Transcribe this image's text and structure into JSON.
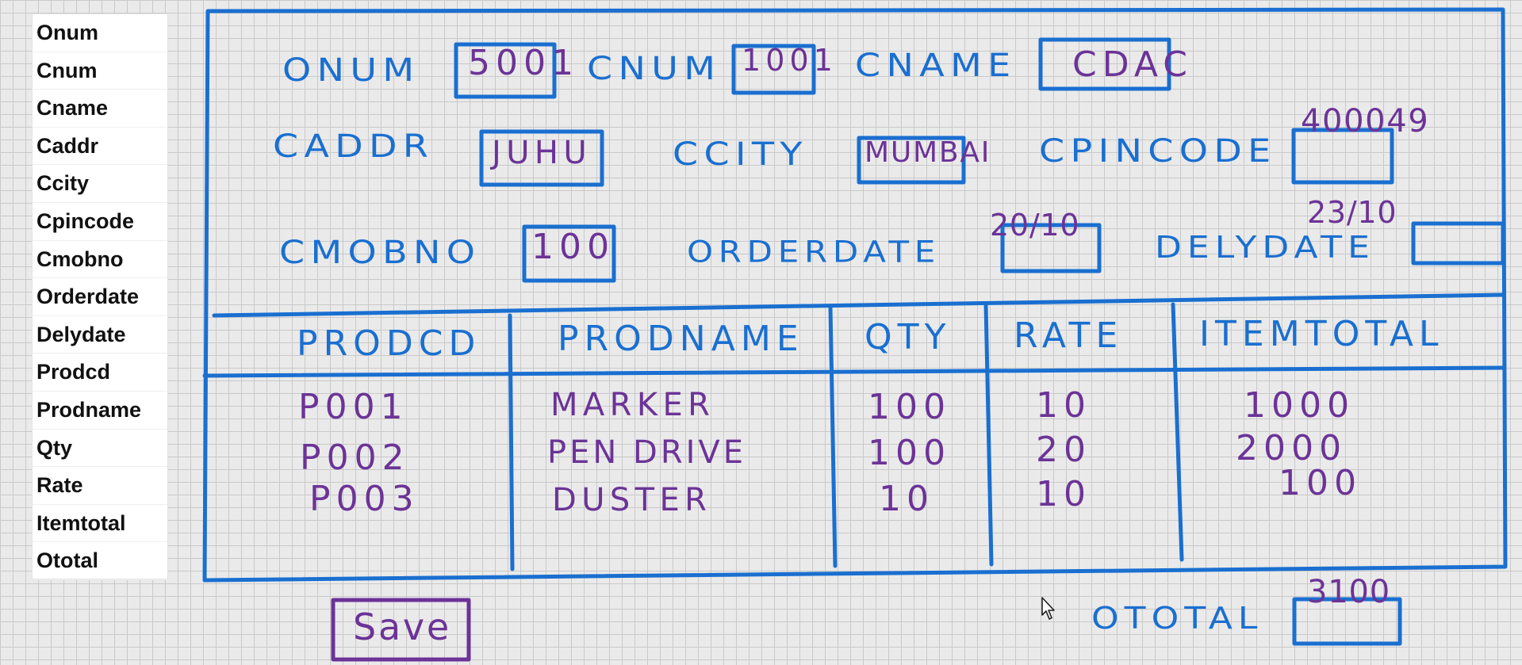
{
  "field_list": [
    "Onum",
    "Cnum",
    "Cname",
    "Caddr",
    "Ccity",
    "Cpincode",
    "Cmobno",
    "Orderdate",
    "Delydate",
    "Prodcd",
    "Prodname",
    "Qty",
    "Rate",
    "Itemtotal",
    "Ototal"
  ],
  "form": {
    "onum_label": "ONUM",
    "onum_value": "5001",
    "cnum_label": "CNUM",
    "cnum_value": "1001",
    "cname_label": "CNAME",
    "cname_value": "CDAC",
    "caddr_label": "CADDR",
    "caddr_value": "JUHU",
    "ccity_label": "CCITY",
    "ccity_value": "MUMBAI",
    "cpincode_label": "CPINCODE",
    "cpincode_value": "400049",
    "cmobno_label": "CMOBNO",
    "cmobno_value": "100",
    "orderdate_label": "ORDERDATE",
    "orderdate_value": "20/10",
    "delydate_label": "DELYDATE",
    "delydate_value": "23/10"
  },
  "table": {
    "columns": [
      "PRODCD",
      "PRODNAME",
      "QTY",
      "RATE",
      "ITEMTOTAL"
    ],
    "rows": [
      [
        "P001",
        "MARKER",
        "100",
        "10",
        "1000"
      ],
      [
        "P002",
        "PEN DRIVE",
        "100",
        "20",
        "2000"
      ],
      [
        "P003",
        "DUSTER",
        "10",
        "10",
        "100"
      ]
    ]
  },
  "ototal_label": "OTOTAL",
  "ototal_value": "3100",
  "save_label": "Save",
  "colors": {
    "blue": "#1a6fd0",
    "purple": "#6c3397"
  }
}
